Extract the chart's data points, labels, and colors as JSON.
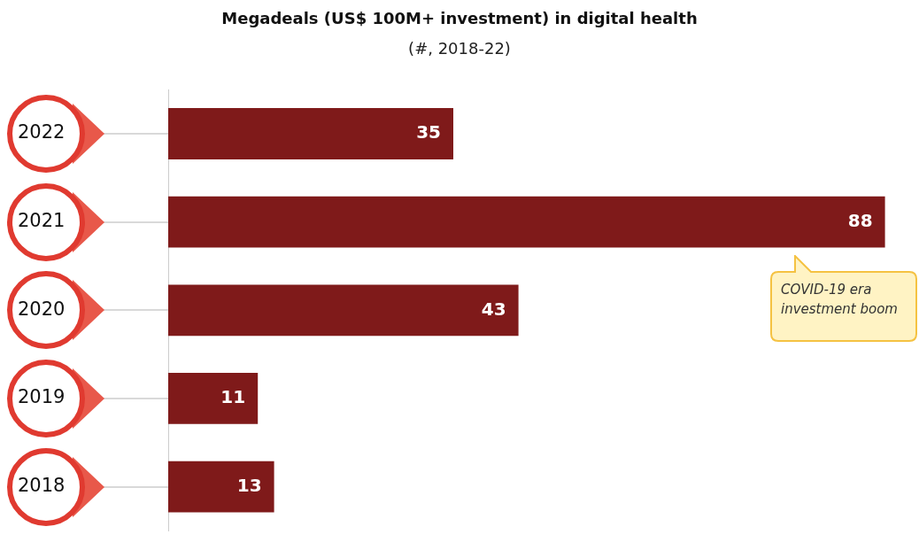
{
  "chart_data": {
    "type": "bar",
    "orientation": "horizontal",
    "title": "Megadeals (US$ 100M+ investment) in digital health",
    "subtitle": "(#, 2018-22)",
    "categories": [
      "2022",
      "2021",
      "2020",
      "2019",
      "2018"
    ],
    "values": [
      35,
      88,
      43,
      11,
      13
    ],
    "color": "#7f1a1a",
    "data_labels": true,
    "legend": false,
    "annotations": [
      "COVID-19 era investment boom"
    ]
  }
}
